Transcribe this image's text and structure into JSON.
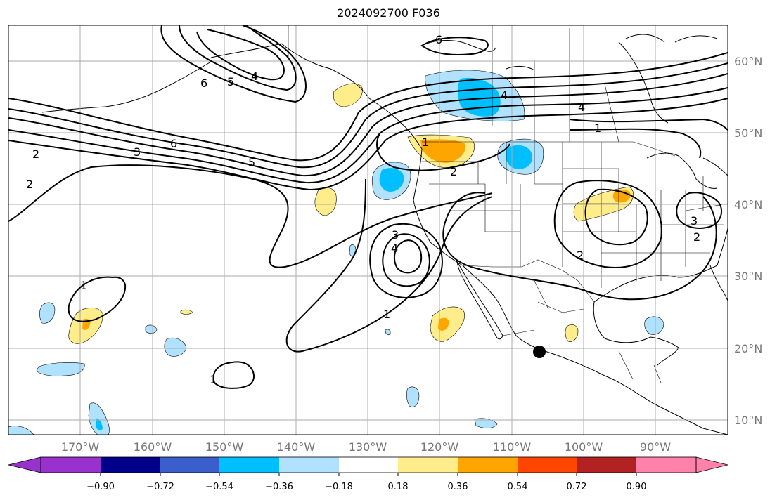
{
  "title": "2024092700 F036",
  "latitude_labels": [
    "60°N",
    "50°N",
    "40°N",
    "30°N",
    "20°N",
    "10°N"
  ],
  "longitude_labels": [
    "170°W",
    "160°W",
    "150°W",
    "140°W",
    "130°W",
    "120°W",
    "110°W",
    "100°W",
    "90°W"
  ],
  "colorbar": {
    "colors": [
      "#9932CC",
      "#00008B",
      "#3A5FCD",
      "#00BFFF",
      "#B0E2FF",
      "#FFFFFF",
      "#FFEC8B",
      "#FFA500",
      "#FF4500",
      "#B22222",
      "#FF82AB"
    ],
    "tick_labels": [
      "−0.90",
      "−0.72",
      "−0.54",
      "−0.36",
      "−0.18",
      "0.18",
      "0.36",
      "0.54",
      "0.72",
      "0.90"
    ]
  },
  "contour_labels": [
    {
      "text": "6"
    },
    {
      "text": "6"
    },
    {
      "text": "5"
    },
    {
      "text": "4"
    },
    {
      "text": "4"
    },
    {
      "text": "4"
    },
    {
      "text": "2"
    },
    {
      "text": "3"
    },
    {
      "text": "6"
    },
    {
      "text": "5"
    },
    {
      "text": "2"
    },
    {
      "text": "1"
    },
    {
      "text": "1"
    },
    {
      "text": "2"
    },
    {
      "text": "3"
    },
    {
      "text": "4"
    },
    {
      "text": "1"
    },
    {
      "text": "1"
    },
    {
      "text": "2"
    },
    {
      "text": "3"
    },
    {
      "text": "2"
    },
    {
      "text": "1"
    }
  ],
  "marker": {
    "name": "storm-center",
    "color": "#000000"
  }
}
